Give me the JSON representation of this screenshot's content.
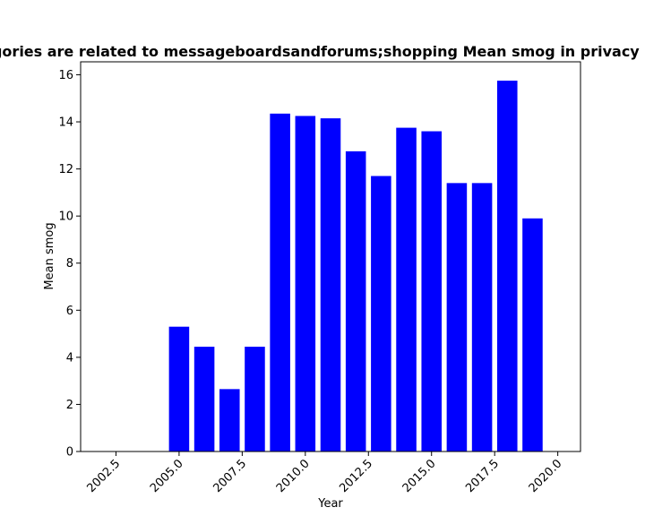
{
  "chart_data": {
    "type": "bar",
    "title": "Categories are related to messageboardsandforums;shopping Mean smog in privacy policies",
    "xlabel": "Year",
    "ylabel": "Mean smog",
    "x": [
      2005,
      2006,
      2007,
      2008,
      2009,
      2010,
      2011,
      2012,
      2013,
      2014,
      2015,
      2016,
      2017,
      2018,
      2019
    ],
    "values": [
      5.3,
      4.45,
      2.65,
      4.45,
      14.35,
      14.25,
      14.15,
      12.75,
      11.7,
      13.75,
      13.6,
      11.4,
      11.4,
      15.75,
      9.9
    ],
    "xlim": [
      2001.1,
      2020.9
    ],
    "ylim": [
      0,
      16.55
    ],
    "xticks": [
      2002.5,
      2005.0,
      2007.5,
      2010.0,
      2012.5,
      2015.0,
      2017.5,
      2020.0
    ],
    "xtick_labels": [
      "2002.5",
      "2005.0",
      "2007.5",
      "2010.0",
      "2012.5",
      "2015.0",
      "2017.5",
      "2020.0"
    ],
    "yticks": [
      0,
      2,
      4,
      6,
      8,
      10,
      12,
      14,
      16
    ],
    "ytick_labels": [
      "0",
      "2",
      "4",
      "6",
      "8",
      "10",
      "12",
      "14",
      "16"
    ],
    "bar_color": "#0000ff",
    "grid": false
  }
}
